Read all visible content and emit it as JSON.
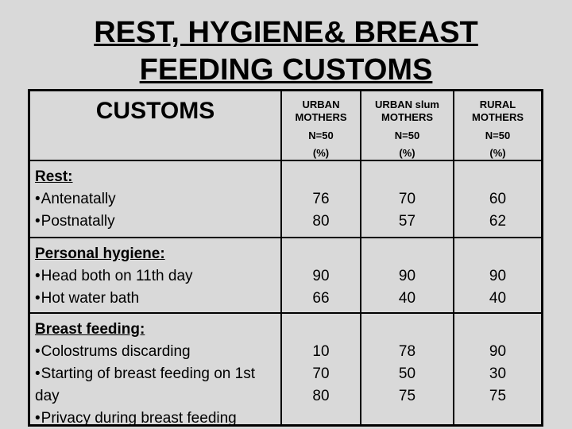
{
  "slide": {
    "title_line1": "REST, HYGIENE& BREAST",
    "title_line2": "FEEDING CUSTOMS"
  },
  "table": {
    "bullet": "•",
    "customs_header": "CUSTOMS",
    "columns": [
      {
        "name": "URBAN MOTHERS",
        "n": "N=50",
        "pct": "(%)"
      },
      {
        "name": "URBAN slum MOTHERS",
        "n": "N=50",
        "pct": "(%)"
      },
      {
        "name": "RURAL MOTHERS",
        "n": "N=50",
        "pct": "(%)"
      }
    ],
    "rows": [
      {
        "category": "Rest:",
        "items": [
          {
            "label": "Antenatally"
          },
          {
            "label": "Postnatally"
          }
        ],
        "values": [
          [
            "76",
            "80"
          ],
          [
            "70",
            "57"
          ],
          [
            "60",
            "62"
          ]
        ]
      },
      {
        "category": "Personal hygiene:",
        "items": [
          {
            "label": "Head both on 11th day"
          },
          {
            "label": "Hot water bath"
          }
        ],
        "values": [
          [
            "90",
            "66"
          ],
          [
            "90",
            "40"
          ],
          [
            "90",
            "40"
          ]
        ]
      },
      {
        "category": "Breast feeding:",
        "items": [
          {
            "label": "Colostrums discarding"
          },
          {
            "label": "Starting of breast feeding on 1st day"
          },
          {
            "label": "Privacy during breast feeding"
          }
        ],
        "values": [
          [
            "10",
            "70",
            "80"
          ],
          [
            "78",
            "50",
            "75"
          ],
          [
            "90",
            "30",
            "75"
          ]
        ]
      }
    ]
  }
}
